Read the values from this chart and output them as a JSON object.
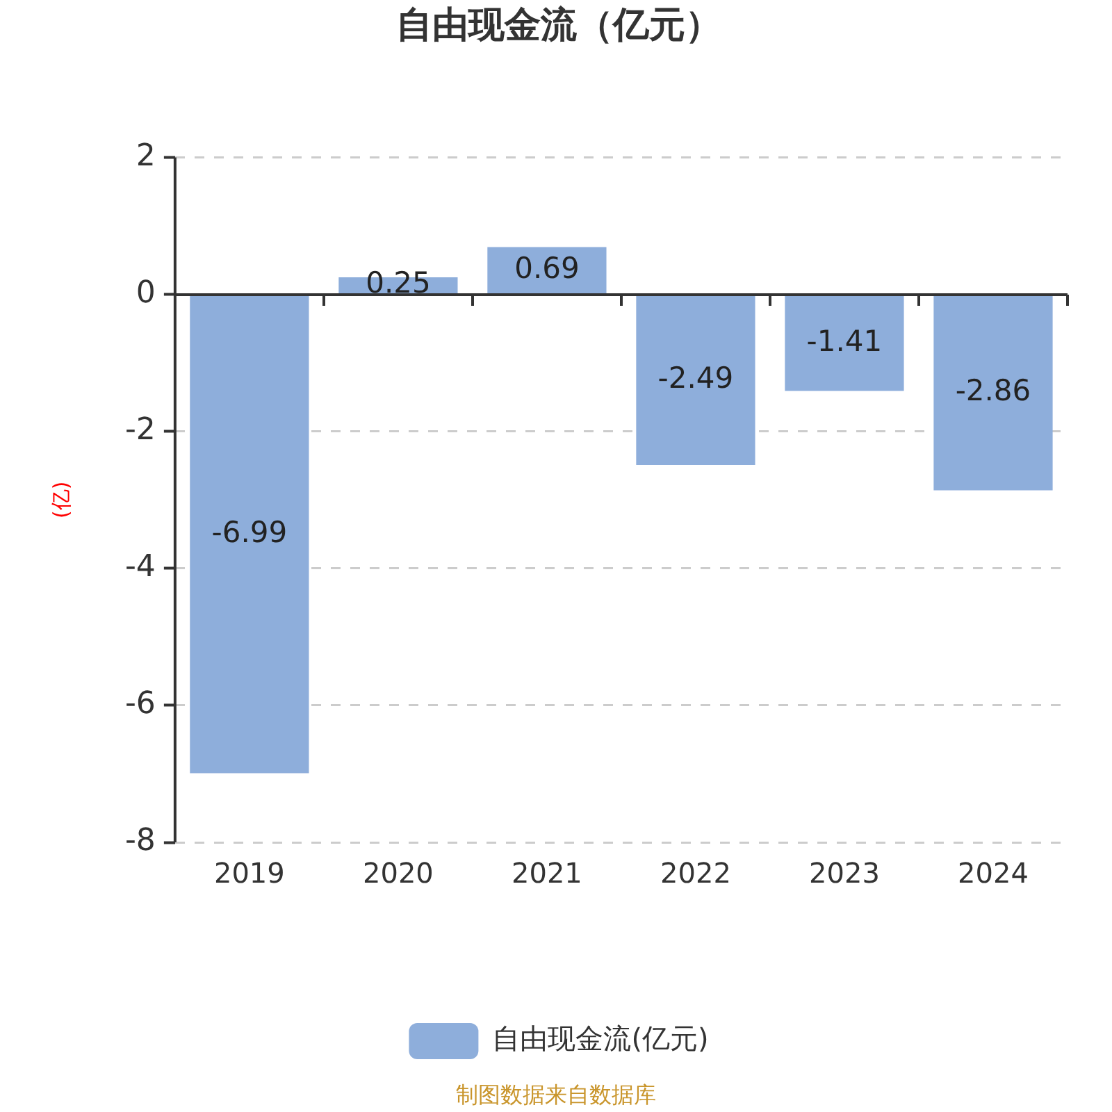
{
  "chart_data": {
    "type": "bar",
    "title": "自由现金流（亿元）",
    "ylabel": "(亿)",
    "categories": [
      "2019",
      "2020",
      "2021",
      "2022",
      "2023",
      "2024"
    ],
    "series": [
      {
        "name": "自由现金流(亿元)",
        "color": "#8eaedb",
        "values": [
          -6.99,
          0.25,
          0.69,
          -2.49,
          -1.41,
          -2.86
        ]
      }
    ],
    "ylim": [
      -8,
      2
    ],
    "yticks": [
      -8,
      -6,
      -4,
      -2,
      0,
      2
    ],
    "grid": "y",
    "legend": "bottom",
    "data_labels": true,
    "annotations": [
      "制图数据来自数据库"
    ]
  }
}
